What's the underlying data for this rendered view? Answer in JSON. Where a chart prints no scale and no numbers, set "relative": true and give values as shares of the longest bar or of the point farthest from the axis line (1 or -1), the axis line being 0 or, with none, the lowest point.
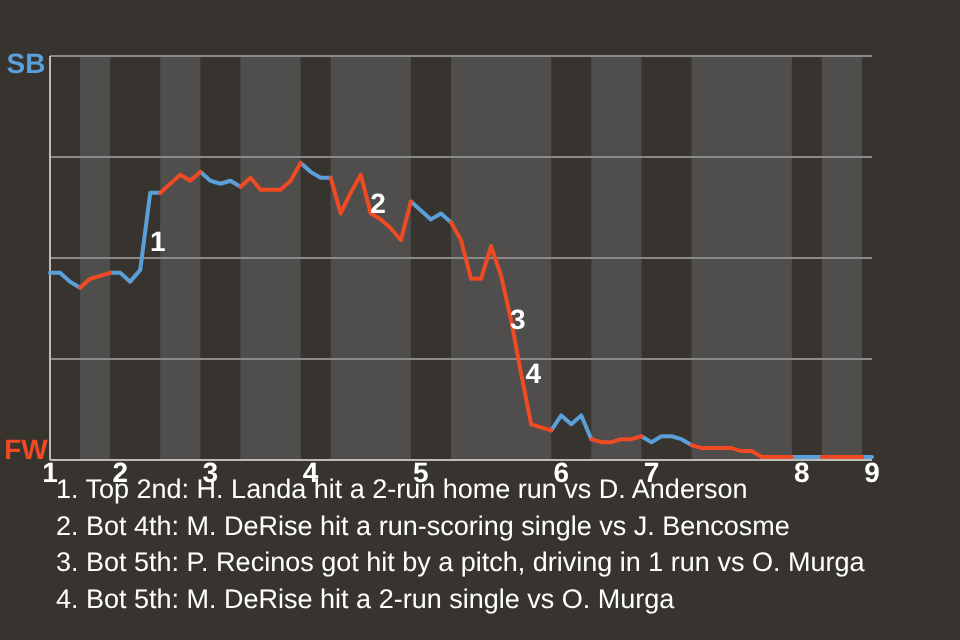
{
  "chart_data": {
    "type": "line",
    "relative": true,
    "categories": [
      "1",
      null,
      null,
      null,
      null,
      null,
      null,
      "2",
      null,
      null,
      null,
      null,
      null,
      null,
      null,
      null,
      "3",
      null,
      null,
      null,
      null,
      null,
      null,
      null,
      null,
      null,
      "4",
      null,
      null,
      null,
      null,
      null,
      null,
      null,
      null,
      null,
      null,
      "5",
      null,
      null,
      null,
      null,
      null,
      null,
      null,
      null,
      null,
      null,
      null,
      null,
      null,
      "6",
      null,
      null,
      null,
      null,
      null,
      null,
      null,
      null,
      "7",
      null,
      null,
      null,
      null,
      null,
      null,
      null,
      null,
      null,
      null,
      null,
      null,
      null,
      null,
      "8",
      null,
      null,
      null,
      null,
      null,
      null,
      "9"
    ],
    "line_style": "solid",
    "ref_lines": [
      {
        "axis": "y",
        "value": 0.34,
        "color": "#8c8a88"
      },
      {
        "axis": "y",
        "value": 0.68,
        "color": "#8c8a88"
      },
      {
        "axis": "y",
        "value": 1.02,
        "color": "#8c8a88"
      },
      {
        "axis": "y",
        "value": 1.36,
        "color": "#8c8a88"
      }
    ],
    "series": [
      {
        "color": "#5b9fd8",
        "values": [
          0.63,
          0.63,
          0.6,
          0.58,
          null,
          null,
          0.63,
          0.63,
          0.6,
          0.64,
          0.9,
          0.9,
          null,
          null,
          null,
          0.97,
          0.94,
          0.93,
          0.94,
          0.92,
          null,
          null,
          null,
          null,
          null,
          1,
          0.97,
          0.95,
          0.95,
          null,
          null,
          null,
          null,
          null,
          null,
          null,
          0.87,
          0.84,
          0.81,
          0.83,
          0.8,
          null,
          null,
          null,
          null,
          null,
          null,
          null,
          null,
          null,
          0.1,
          0.15,
          0.12,
          0.15,
          0.07,
          null,
          null,
          null,
          null,
          0.08,
          0.06,
          0.08,
          0.08,
          0.07,
          0.05,
          null,
          null,
          null,
          null,
          null,
          null,
          null,
          null,
          null,
          0.01,
          0.01,
          0.01,
          0.01,
          null,
          null,
          null,
          0.01,
          0.01
        ]
      },
      {
        "color": "#f04a23",
        "values": [
          null,
          null,
          null,
          0.58,
          0.61,
          0.62,
          0.63,
          null,
          null,
          null,
          null,
          0.9,
          0.93,
          0.96,
          0.94,
          0.97,
          null,
          null,
          null,
          0.92,
          0.95,
          0.91,
          0.91,
          0.91,
          0.94,
          1,
          null,
          null,
          0.95,
          0.83,
          0.9,
          0.96,
          0.83,
          0.81,
          0.78,
          0.74,
          0.87,
          null,
          null,
          null,
          0.8,
          0.74,
          0.61,
          0.61,
          0.72,
          0.62,
          0.47,
          0.29,
          0.12,
          0.11,
          0.1,
          null,
          null,
          null,
          0.07,
          0.06,
          0.06,
          0.07,
          0.07,
          0.08,
          null,
          null,
          null,
          null,
          0.05,
          0.04,
          0.04,
          0.04,
          0.04,
          0.03,
          0.03,
          0.01,
          0.01,
          0.01,
          0.01,
          null,
          null,
          0.01,
          0.01,
          0.01,
          0.01,
          0.01,
          null
        ]
      }
    ],
    "annotations": [
      "SB",
      "FW",
      "1",
      "2",
      "3",
      "4",
      "1. Top 2nd: H. Landa hit a 2-run home run vs D. Anderson",
      "2. Bot 4th: M. DeRise hit a run-scoring single vs J. Bencosme",
      "3. Bot 5th: P. Recinos got hit by a pitch, driving in 1 run vs O. Murga",
      "4. Bot 5th: M. DeRise hit a 2-run single vs O. Murga"
    ]
  }
}
